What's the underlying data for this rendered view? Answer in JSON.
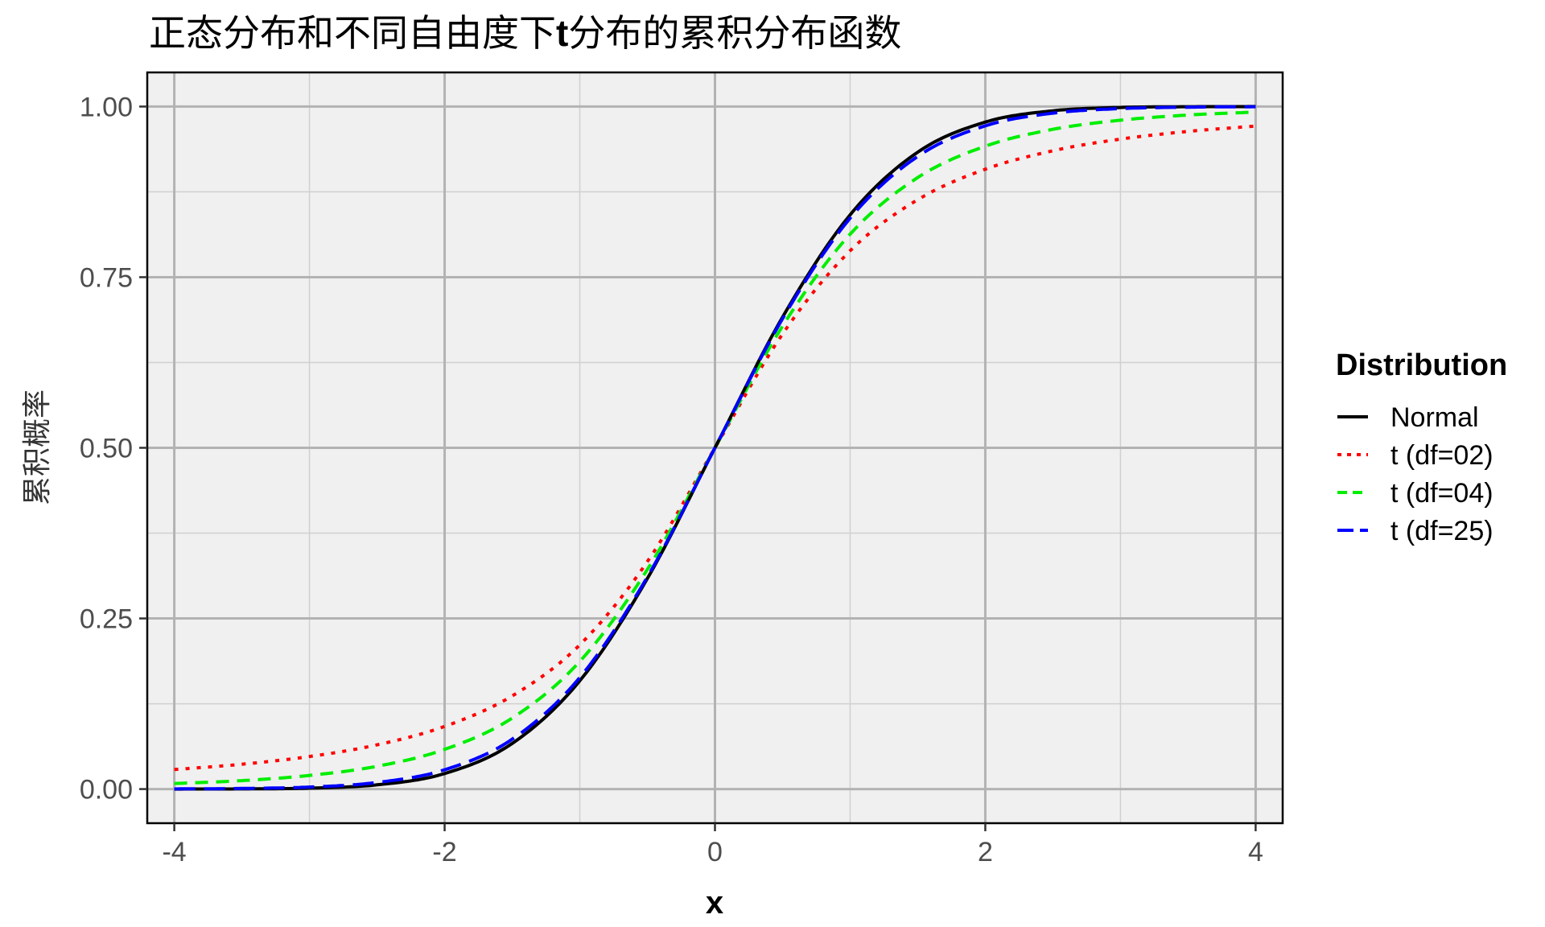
{
  "chart_data": {
    "type": "line",
    "title_parts": [
      "正态分布和不同自由度下",
      "t",
      "分布的累积分布函数"
    ],
    "xlabel": "x",
    "ylabel": "累积概率",
    "xlim": [
      -4.2,
      4.2
    ],
    "ylim": [
      -0.05,
      1.05
    ],
    "x_ticks": [
      -4,
      -2,
      0,
      2,
      4
    ],
    "x_tick_labels": [
      "-4",
      "-2",
      "0",
      "2",
      "4"
    ],
    "y_ticks": [
      0,
      0.25,
      0.5,
      0.75,
      1
    ],
    "y_tick_labels": [
      "0.00",
      "0.25",
      "0.50",
      "0.75",
      "1.00"
    ],
    "grid": true,
    "legend_title": "Distribution",
    "legend_position": "right",
    "x": [
      -4,
      -3.5,
      -3,
      -2.5,
      -2,
      -1.5,
      -1,
      -0.5,
      0,
      0.5,
      1,
      1.5,
      2,
      2.5,
      3,
      3.5,
      4
    ],
    "series": [
      {
        "name": "Normal",
        "color": "#000000",
        "dash": "solid",
        "values": [
          3e-05,
          0.00023,
          0.00135,
          0.00621,
          0.02275,
          0.06681,
          0.15866,
          0.30854,
          0.5,
          0.69146,
          0.84134,
          0.93319,
          0.97725,
          0.99379,
          0.99865,
          0.99977,
          0.99997
        ]
      },
      {
        "name": "t (df=02)",
        "color": "#ff0000",
        "dash": "dotted",
        "values": [
          0.0286,
          0.0364,
          0.0477,
          0.0648,
          0.0918,
          0.1365,
          0.2113,
          0.3333,
          0.5,
          0.6667,
          0.7887,
          0.8635,
          0.9082,
          0.9352,
          0.9523,
          0.9636,
          0.9714
        ]
      },
      {
        "name": "t (df=04)",
        "color": "#00ee00",
        "dash": "dashed",
        "values": [
          0.0081,
          0.0124,
          0.02,
          0.0334,
          0.0581,
          0.104,
          0.187,
          0.3217,
          0.5,
          0.6783,
          0.813,
          0.896,
          0.9419,
          0.9666,
          0.98,
          0.9876,
          0.9919
        ]
      },
      {
        "name": "t (df=25)",
        "color": "#0000ff",
        "dash": "longdash",
        "values": [
          0.00024,
          0.00088,
          0.00297,
          0.00967,
          0.02824,
          0.07304,
          0.16344,
          0.31075,
          0.5,
          0.68925,
          0.83656,
          0.92696,
          0.97176,
          0.99033,
          0.99703,
          0.99912,
          0.99976
        ]
      }
    ]
  }
}
